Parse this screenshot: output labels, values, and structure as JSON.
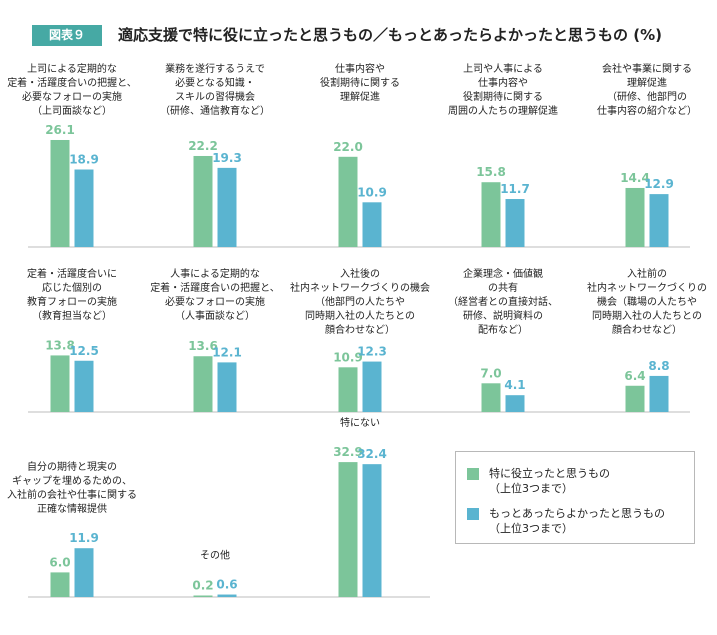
{
  "header": {
    "badge": "図表９",
    "title": "適応支援で特に役に立ったと思うもの／もっとあったらよかったと思うもの (%)"
  },
  "colors": {
    "series1": "#7cc59a",
    "series2": "#5ab4d0"
  },
  "legend": [
    {
      "label": "特に役立ったと思うもの\n（上位3つまで）"
    },
    {
      "label": "もっとあったらよかったと思うもの\n（上位3つまで）"
    }
  ],
  "chart_data": {
    "type": "bar",
    "series": [
      {
        "name": "特に役立ったと思うもの（上位3つまで）",
        "values": [
          26.1,
          22.2,
          22.0,
          15.8,
          14.4,
          13.8,
          13.6,
          10.9,
          7.0,
          6.4,
          6.0,
          0.2,
          32.9
        ]
      },
      {
        "name": "もっとあったらよかったと思うもの（上位3つまで）",
        "values": [
          18.9,
          19.3,
          10.9,
          11.7,
          12.9,
          12.5,
          12.1,
          12.3,
          4.1,
          8.8,
          11.9,
          0.6,
          32.4
        ]
      }
    ],
    "categories": [
      [
        "上司による定期的な",
        "定着・活躍度合いの把握と、",
        "必要なフォローの実施",
        "（上司面談など）"
      ],
      [
        "業務を遂行するうえで",
        "必要となる知識・",
        "スキルの習得機会",
        "（研修、通信教育など）"
      ],
      [
        "仕事内容や",
        "役割期待に関する",
        "理解促進"
      ],
      [
        "上司や人事による",
        "仕事内容や",
        "役割期待に関する",
        "周囲の人たちの理解促進"
      ],
      [
        "会社や事業に関する",
        "理解促進",
        "（研修、他部門の",
        "仕事内容の紹介など）"
      ],
      [
        "定着・活躍度合いに",
        "応じた個別の",
        "教育フォローの実施",
        "（教育担当など）"
      ],
      [
        "人事による定期的な",
        "定着・活躍度合いの把握と、",
        "必要なフォローの実施",
        "（人事面談など）"
      ],
      [
        "入社後の",
        "社内ネットワークづくりの機会",
        "（他部門の人たちや",
        "同時期入社の人たちとの",
        "顔合わせなど）"
      ],
      [
        "企業理念・価値観",
        "の共有",
        "（経営者との直接対話、",
        "研修、説明資料の",
        "配布など）"
      ],
      [
        "入社前の",
        "社内ネットワークづくりの",
        "機会（職場の人たちや",
        "同時期入社の人たちとの",
        "顔合わせなど）"
      ],
      [
        "自分の期待と現実の",
        "ギャップを埋めるための、",
        "入社前の会社や仕事に関する",
        "正確な情報提供"
      ],
      [
        "その他"
      ],
      [
        "特にない"
      ]
    ]
  }
}
